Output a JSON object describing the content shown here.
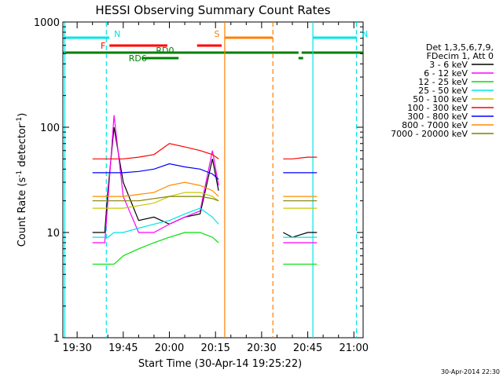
{
  "chart_data": {
    "type": "line",
    "title": "HESSI Observing Summary Count Rates",
    "xlabel": "Start Time (30-Apr-14 19:25:22)",
    "ylabel_main": "Count Rate (s",
    "ylabel_exp1": "-1",
    "ylabel_mid": " detector",
    "ylabel_exp2": "-1",
    "ylabel_end": ")",
    "y_scale": "log",
    "ylim": [
      1,
      1000
    ],
    "xlim": [
      "19:25:22",
      "21:03:00"
    ],
    "x_ticks": [
      "19:30",
      "19:45",
      "20:00",
      "20:15",
      "20:30",
      "20:45",
      "21:00"
    ],
    "y_ticks": [
      "1",
      "10",
      "100",
      "1000"
    ],
    "legend_header": [
      "Det 1,3,5,6,7,9,",
      "FDecim 1, Att 0"
    ],
    "footer_date": "30-Apr-2014 22:30",
    "intervals": [
      {
        "label": "N",
        "start": "19:25:22",
        "end": "19:40:30",
        "color": "#00e5e5",
        "level": "top"
      },
      {
        "label": "N",
        "start": "20:46:40",
        "end": "21:01:00",
        "color": "#00e5e5",
        "level": "top"
      },
      {
        "label": "S",
        "start": "20:18:00",
        "end": "20:33:40",
        "color": "#ff7f00",
        "level": "top"
      },
      {
        "label": "F",
        "start": "19:40:30",
        "end": "19:59:20",
        "color": "#ff0000",
        "level": "mid"
      },
      {
        "label": "",
        "start": "20:09:00",
        "end": "20:17:00",
        "color": "#ff0000",
        "level": "mid"
      },
      {
        "label": "RD0",
        "start": "19:25:22",
        "end": "20:42:00",
        "color": "#008000",
        "level": "rd0"
      },
      {
        "label": "",
        "start": "20:43:00",
        "end": "21:03:00",
        "color": "#008000",
        "level": "rd0"
      },
      {
        "label": "RD6",
        "start": "19:51:00",
        "end": "20:03:00",
        "color": "#008000",
        "level": "rd6"
      },
      {
        "label": "",
        "start": "20:42:00",
        "end": "20:43:30",
        "color": "#008000",
        "level": "rd6"
      }
    ],
    "vlines": [
      {
        "time": "19:26:00",
        "color": "#00e5e5",
        "style": "solid"
      },
      {
        "time": "19:39:30",
        "color": "#00e5e5",
        "style": "dashed"
      },
      {
        "time": "20:18:00",
        "color": "#ff7f00",
        "style": "solid"
      },
      {
        "time": "20:33:40",
        "color": "#ff7f00",
        "style": "dashed"
      },
      {
        "time": "20:46:40",
        "color": "#00e5e5",
        "style": "solid"
      },
      {
        "time": "21:00:50",
        "color": "#00e5e5",
        "style": "dashed"
      }
    ],
    "x": [
      "19:35",
      "19:39",
      "19:40",
      "19:42",
      "19:45",
      "19:50",
      "19:55",
      "20:00",
      "20:05",
      "20:10",
      "20:14",
      "20:16",
      "20:18",
      "20:37",
      "20:40",
      "20:45",
      "20:48"
    ],
    "series": [
      {
        "name": "3 - 6 keV",
        "color": "#000000",
        "values": [
          10,
          10,
          25,
          100,
          30,
          13,
          14,
          12,
          14,
          15,
          50,
          25,
          null,
          10,
          9,
          10,
          10
        ]
      },
      {
        "name": "6 - 12 keV",
        "color": "#ff00ff",
        "values": [
          8,
          8,
          20,
          130,
          22,
          10,
          10,
          12,
          14,
          16,
          60,
          28,
          null,
          8,
          8,
          8,
          8
        ]
      },
      {
        "name": "12 - 25 keV",
        "color": "#00e000",
        "values": [
          5,
          5,
          5,
          5,
          6,
          7,
          8,
          9,
          10,
          10,
          9,
          8,
          null,
          5,
          5,
          5,
          5
        ]
      },
      {
        "name": "25 - 50 keV",
        "color": "#00e5e5",
        "values": [
          9,
          9,
          9,
          10,
          10,
          11,
          12,
          13,
          15,
          17,
          14,
          12,
          null,
          9,
          9,
          9,
          9
        ]
      },
      {
        "name": "50 - 100 keV",
        "color": "#c8c800",
        "values": [
          17,
          17,
          17,
          17,
          17,
          18,
          19,
          22,
          24,
          24,
          22,
          20,
          null,
          17,
          17,
          17,
          17
        ]
      },
      {
        "name": "100 - 300 keV",
        "color": "#ff0000",
        "values": [
          50,
          50,
          50,
          50,
          50,
          52,
          55,
          70,
          65,
          60,
          55,
          50,
          null,
          50,
          50,
          52,
          52
        ]
      },
      {
        "name": "300 - 800 keV",
        "color": "#0000ff",
        "values": [
          37,
          37,
          37,
          37,
          37,
          38,
          40,
          45,
          42,
          40,
          36,
          32,
          null,
          37,
          37,
          37,
          37
        ]
      },
      {
        "name": "800 - 7000 keV",
        "color": "#ff8c00",
        "values": [
          22,
          22,
          22,
          22,
          22,
          23,
          24,
          28,
          30,
          28,
          25,
          22,
          null,
          22,
          22,
          22,
          22
        ]
      },
      {
        "name": "7000 - 20000 keV",
        "color": "#808000",
        "values": [
          20,
          20,
          20,
          20,
          20,
          20,
          21,
          22,
          22,
          22,
          21,
          20,
          null,
          20,
          20,
          20,
          20
        ]
      }
    ]
  }
}
